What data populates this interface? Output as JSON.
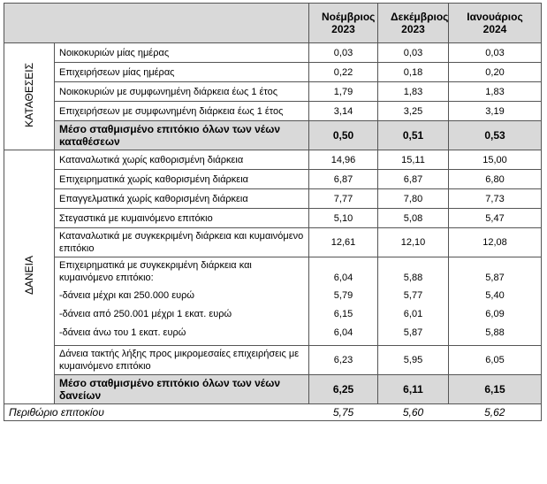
{
  "header": {
    "columns": [
      "Νοέμβριος 2023",
      "Δεκέμβριος 2023",
      "Ιανουάριος 2024"
    ]
  },
  "groups": [
    {
      "label": "ΚΑΤΑΘΕΣΕΙΣ",
      "rows": [
        {
          "label": "Νοικοκυριών μίας ημέρας",
          "values": [
            "0,03",
            "0,03",
            "0,03"
          ]
        },
        {
          "label": "Επιχειρήσεων μίας ημέρας",
          "values": [
            "0,22",
            "0,18",
            "0,20"
          ]
        },
        {
          "label": "Νοικοκυριών με συμφωνημένη διάρκεια έως 1 έτος",
          "values": [
            "1,79",
            "1,83",
            "1,83"
          ]
        },
        {
          "label": "Επιχειρήσεων με συμφωνημένη διάρκεια έως 1 έτος",
          "values": [
            "3,14",
            "3,25",
            "3,19"
          ]
        },
        {
          "label": "Μέσο σταθμισμένο επιτόκιο όλων των νέων καταθέσεων",
          "values": [
            "0,50",
            "0,51",
            "0,53"
          ],
          "total": true
        }
      ]
    },
    {
      "label": "ΔΑΝΕΙΑ",
      "rows": [
        {
          "label": "Καταναλωτικά χωρίς καθορισμένη διάρκεια",
          "values": [
            "14,96",
            "15,11",
            "15,00"
          ]
        },
        {
          "label": "Επιχειρηματικά χωρίς καθορισμένη διάρκεια",
          "values": [
            "6,87",
            "6,87",
            "6,80"
          ]
        },
        {
          "label": "Επαγγελματικά χωρίς καθορισμένη διάρκεια",
          "values": [
            "7,77",
            "7,80",
            "7,73"
          ]
        },
        {
          "label": "Στεγαστικά με κυμαινόμενο επιτόκιο",
          "values": [
            "5,10",
            "5,08",
            "5,47"
          ]
        },
        {
          "label": "Καταναλωτικά με συγκεκριμένη διάρκεια και κυμαινόμενο επιτόκιο",
          "values": [
            "12,61",
            "12,10",
            "12,08"
          ]
        },
        {
          "label": "Επιχειρηματικά με συγκεκριμένη διάρκεια και κυμαινόμενο επιτόκιο:",
          "values": [
            "6,04",
            "5,88",
            "5,87"
          ],
          "subrows": [
            {
              "label": "-δάνεια μέχρι και 250.000 ευρώ",
              "values": [
                "5,79",
                "5,77",
                "5,40"
              ]
            },
            {
              "label": "-δάνεια από 250.001 μέχρι 1 εκατ. ευρώ",
              "values": [
                "6,15",
                "6,01",
                "6,09"
              ]
            },
            {
              "label": "-δάνεια άνω του 1 εκατ. ευρώ",
              "values": [
                "6,04",
                "5,87",
                "5,88"
              ]
            }
          ]
        },
        {
          "label": "Δάνεια τακτής λήξης προς μικρομεσαίες επιχειρήσεις με κυμαινόμενο επιτόκιο",
          "values": [
            "6,23",
            "5,95",
            "6,05"
          ]
        },
        {
          "label": "Μέσο σταθμισμένο επιτόκιο όλων των νέων δανείων",
          "values": [
            "6,25",
            "6,11",
            "6,15"
          ],
          "total": true
        }
      ]
    }
  ],
  "footer": {
    "label": "Περιθώριο επιτοκίου",
    "values": [
      "5,75",
      "5,60",
      "5,62"
    ]
  }
}
